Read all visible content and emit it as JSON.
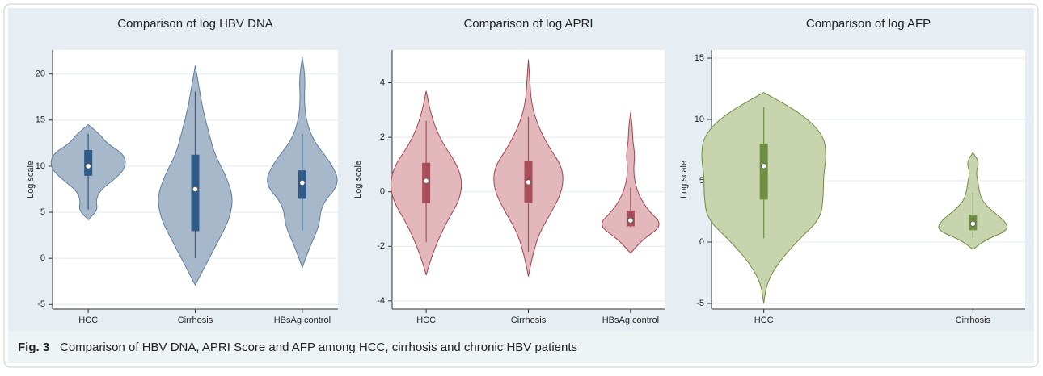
{
  "chart_data": [
    {
      "type": "violin",
      "title": "Comparison of log HBV DNA",
      "y_label": "Log scale",
      "categories": [
        "HCC",
        "Cirrhosis",
        "HBsAg control"
      ],
      "ylim": [
        -5.5,
        22.6
      ],
      "yticks": [
        -5,
        0,
        5,
        10,
        15,
        20
      ],
      "fill": "#a8b8cb",
      "stroke": "#5f7c9b",
      "box_color": "#2f5b88",
      "violins": [
        {
          "min": 4.2,
          "max": 14.5,
          "whisker_low": 5.3,
          "q1": 9,
          "median": 10,
          "q3": 11.7,
          "whisker_high": 13.5,
          "density": [
            0,
            0.25,
            0.2,
            0.3,
            0.6,
            0.9,
            1,
            0.9,
            0.5,
            0.3,
            0
          ]
        },
        {
          "min": -2.9,
          "max": 20.9,
          "whisker_low": 0,
          "q1": 3,
          "median": 7.5,
          "q3": 11.2,
          "whisker_high": 18.1,
          "density": [
            0,
            0.3,
            0.6,
            0.9,
            1,
            0.8,
            0.5,
            0.35,
            0.2,
            0.1,
            0
          ]
        },
        {
          "min": -1,
          "max": 21.8,
          "whisker_low": 3,
          "q1": 6.5,
          "median": 8.2,
          "q3": 9.5,
          "whisker_high": 13.5,
          "density": [
            0,
            0.2,
            0.45,
            0.5,
            1,
            0.75,
            0.3,
            0.1,
            0.05,
            0.08,
            0
          ]
        }
      ]
    },
    {
      "type": "violin",
      "title": "Comparison of log APRI",
      "y_label": "Log scale",
      "categories": [
        "HCC",
        "Cirrhosis",
        "HBsAg control"
      ],
      "ylim": [
        -4.3,
        5.2
      ],
      "yticks": [
        -4,
        -2,
        0,
        2,
        4
      ],
      "fill": "#e2b8bc",
      "stroke": "#a5424c",
      "box_color": "#a84e58",
      "violins": [
        {
          "min": -3.05,
          "max": 3.7,
          "whisker_low": -1.85,
          "q1": -0.4,
          "median": 0.4,
          "q3": 1.05,
          "whisker_high": 2.6,
          "density": [
            0,
            0.15,
            0.35,
            0.6,
            0.9,
            1,
            0.85,
            0.5,
            0.25,
            0.1,
            0
          ]
        },
        {
          "min": -3.1,
          "max": 4.85,
          "whisker_low": -2.2,
          "q1": -0.4,
          "median": 0.35,
          "q3": 1.1,
          "whisker_high": 2.75,
          "density": [
            0,
            0.12,
            0.3,
            0.65,
            0.95,
            0.95,
            0.55,
            0.25,
            0.08,
            0.04,
            0
          ]
        },
        {
          "min": -2.25,
          "max": 2.9,
          "whisker_low": -1.3,
          "q1": -1.25,
          "median": -1.05,
          "q3": -0.7,
          "whisker_high": 0.15,
          "density": [
            0,
            0.35,
            0.9,
            0.5,
            0.25,
            0.12,
            0.08,
            0.12,
            0.06,
            0.05,
            0
          ]
        }
      ]
    },
    {
      "type": "violin",
      "title": "Comparison of log AFP",
      "y_label": "Log scale",
      "categories": [
        "HCC",
        "Cirrhosis"
      ],
      "ylim": [
        -5.46,
        15.66
      ],
      "yticks": [
        -5,
        0,
        5,
        10,
        15
      ],
      "fill": "#c8d4ad",
      "stroke": "#6e8b40",
      "box_color": "#6f8f42",
      "violins": [
        {
          "min": -5,
          "max": 12.2,
          "whisker_low": 0.3,
          "q1": 3.5,
          "median": 6.2,
          "q3": 8,
          "whisker_high": 11,
          "density": [
            0,
            0.05,
            0.25,
            0.55,
            0.9,
            0.95,
            0.95,
            1,
            0.95,
            0.6,
            0
          ]
        },
        {
          "min": -0.6,
          "max": 7.3,
          "whisker_low": 0.3,
          "q1": 1,
          "median": 1.5,
          "q3": 2.2,
          "whisker_high": 4,
          "density": [
            0,
            0.2,
            0.58,
            0.5,
            0.3,
            0.15,
            0.1,
            0.08,
            0.05,
            0.1,
            0
          ]
        }
      ]
    }
  ],
  "caption": {
    "label": "Fig. 3",
    "text": "Comparison of HBV DNA, APRI Score and AFP among HCC, cirrhosis and chronic HBV patients"
  }
}
